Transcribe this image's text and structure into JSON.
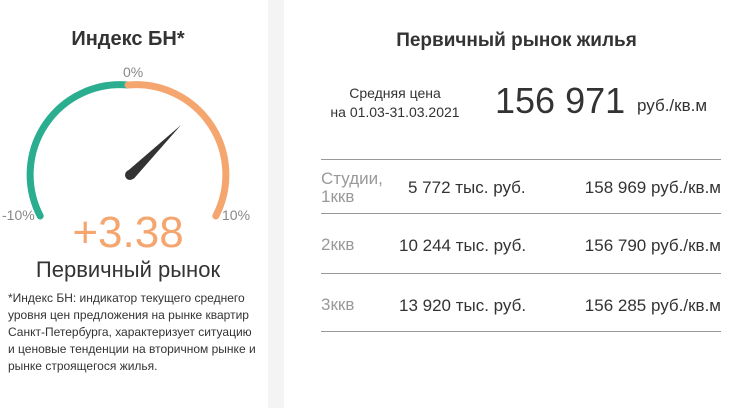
{
  "index_card": {
    "title": "Индекс БН*",
    "gauge": {
      "label_zero": "0%",
      "label_min": "-10%",
      "label_max": "10%",
      "colors": {
        "negative": "#2aae8f",
        "positive": "#f5a66f",
        "needle": "#333333"
      },
      "needle_value_percent": 3.38
    },
    "value": "+3.38",
    "market": "Первичный рынок",
    "footnote": "*Индекс БН: индикатор текущего среднего уровня цен предложения на рынке квартир Санкт-Петербурга, характеризует ситуацию и ценовые тенденции на вторичном рынке и рынке строящегося жилья."
  },
  "primary_card": {
    "title": "Первичный рынок жилья",
    "avg_label_line1": "Средняя цена",
    "avg_label_line2": "на 01.03-31.03.2021",
    "avg_price": "156 971",
    "avg_unit": "руб./кв.м",
    "rows": [
      {
        "type_line1": "Студии,",
        "type_line2": "1ккв",
        "total": "5 772 тыс. руб.",
        "per_sqm": "158 969 руб./кв.м"
      },
      {
        "type_line1": "2ккв",
        "type_line2": "",
        "total": "10 244 тыс. руб.",
        "per_sqm": "156 790 руб./кв.м"
      },
      {
        "type_line1": "3ккв",
        "type_line2": "",
        "total": "13 920 тыс. руб.",
        "per_sqm": "156 285 руб./кв.м"
      }
    ]
  }
}
